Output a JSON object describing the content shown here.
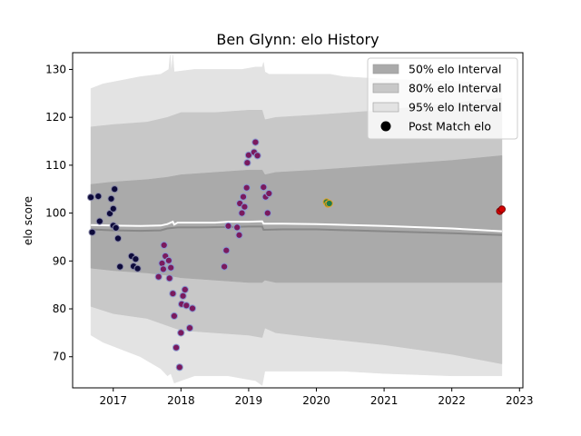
{
  "chart_data": {
    "type": "scatter",
    "title": "Ben Glynn: elo History",
    "xlabel": "",
    "ylabel": "elo score",
    "xlim": [
      2016.4,
      2023.05
    ],
    "ylim": [
      63.5,
      133.5
    ],
    "xticks": [
      {
        "value": 2017,
        "label": "2017"
      },
      {
        "value": 2018,
        "label": "2018"
      },
      {
        "value": 2019,
        "label": "2019"
      },
      {
        "value": 2020,
        "label": "2020"
      },
      {
        "value": 2021,
        "label": "2021"
      },
      {
        "value": 2022,
        "label": "2022"
      },
      {
        "value": 2023,
        "label": "2023"
      }
    ],
    "yticks": [
      {
        "value": 70,
        "label": "70"
      },
      {
        "value": 80,
        "label": "80"
      },
      {
        "value": 90,
        "label": "90"
      },
      {
        "value": 100,
        "label": "100"
      },
      {
        "value": 110,
        "label": "110"
      },
      {
        "value": 120,
        "label": "120"
      },
      {
        "value": 130,
        "label": "130"
      }
    ],
    "grid": false,
    "legend_placement": "top-right",
    "legend": [
      {
        "label": "50% elo Interval",
        "kind": "band",
        "color": "#aaaaaa"
      },
      {
        "label": "80% elo Interval",
        "kind": "band",
        "color": "#c8c8c8"
      },
      {
        "label": "95% elo Interval",
        "kind": "band",
        "color": "#e3e3e3"
      },
      {
        "label": "Post Match elo",
        "kind": "marker",
        "color": "#000000"
      }
    ],
    "bands": [
      {
        "name": "95% elo Interval",
        "color": "#e3e3e3",
        "upper": [
          [
            2016.67,
            126.0
          ],
          [
            2016.85,
            127.0
          ],
          [
            2017.4,
            128.5
          ],
          [
            2017.7,
            129.0
          ],
          [
            2017.82,
            130.0
          ],
          [
            2017.84,
            133.0
          ],
          [
            2017.86,
            129.5
          ],
          [
            2017.88,
            133.0
          ],
          [
            2017.9,
            129.5
          ],
          [
            2018.2,
            130.0
          ],
          [
            2018.5,
            130.0
          ],
          [
            2018.7,
            130.0
          ],
          [
            2018.9,
            130.0
          ],
          [
            2019.1,
            130.5
          ],
          [
            2019.2,
            130.5
          ],
          [
            2019.22,
            131.5
          ],
          [
            2019.24,
            129.5
          ],
          [
            2019.3,
            129.0
          ],
          [
            2019.6,
            129.0
          ],
          [
            2020.0,
            129.0
          ],
          [
            2020.2,
            129.0
          ],
          [
            2020.4,
            128.5
          ],
          [
            2021.0,
            128.0
          ],
          [
            2022.0,
            127.5
          ],
          [
            2022.74,
            127.0
          ]
        ],
        "lower": [
          [
            2016.67,
            74.5
          ],
          [
            2016.85,
            73.0
          ],
          [
            2017.4,
            70.0
          ],
          [
            2017.7,
            67.5
          ],
          [
            2017.8,
            66.0
          ],
          [
            2017.85,
            66.5
          ],
          [
            2017.9,
            64.5
          ],
          [
            2018.2,
            66.0
          ],
          [
            2018.5,
            66.0
          ],
          [
            2018.7,
            66.0
          ],
          [
            2018.9,
            65.5
          ],
          [
            2019.1,
            65.0
          ],
          [
            2019.2,
            64.0
          ],
          [
            2019.24,
            67.0
          ],
          [
            2019.3,
            67.0
          ],
          [
            2019.6,
            67.0
          ],
          [
            2020.0,
            67.0
          ],
          [
            2020.2,
            67.0
          ],
          [
            2020.4,
            67.0
          ],
          [
            2021.0,
            66.5
          ],
          [
            2022.0,
            66.0
          ],
          [
            2022.74,
            66.0
          ]
        ]
      },
      {
        "name": "80% elo Interval",
        "color": "#c8c8c8",
        "upper": [
          [
            2016.67,
            118.0
          ],
          [
            2017.0,
            118.5
          ],
          [
            2017.5,
            119.0
          ],
          [
            2017.8,
            120.0
          ],
          [
            2018.0,
            121.0
          ],
          [
            2018.5,
            121.0
          ],
          [
            2019.0,
            121.5
          ],
          [
            2019.2,
            121.5
          ],
          [
            2019.24,
            119.5
          ],
          [
            2019.4,
            120.0
          ],
          [
            2020.0,
            120.5
          ],
          [
            2021.0,
            121.5
          ],
          [
            2022.0,
            123.0
          ],
          [
            2022.74,
            124.0
          ]
        ],
        "lower": [
          [
            2016.67,
            80.5
          ],
          [
            2017.0,
            79.0
          ],
          [
            2017.5,
            78.0
          ],
          [
            2017.8,
            76.5
          ],
          [
            2018.0,
            75.5
          ],
          [
            2018.5,
            75.0
          ],
          [
            2019.0,
            74.5
          ],
          [
            2019.2,
            74.0
          ],
          [
            2019.24,
            76.0
          ],
          [
            2019.4,
            75.0
          ],
          [
            2020.0,
            74.0
          ],
          [
            2021.0,
            72.5
          ],
          [
            2022.0,
            70.5
          ],
          [
            2022.74,
            68.5
          ]
        ]
      },
      {
        "name": "50% elo Interval",
        "color": "#aaaaaa",
        "upper": [
          [
            2016.67,
            106.0
          ],
          [
            2017.0,
            106.5
          ],
          [
            2017.5,
            107.0
          ],
          [
            2017.8,
            107.5
          ],
          [
            2018.0,
            108.0
          ],
          [
            2018.5,
            108.5
          ],
          [
            2019.0,
            109.0
          ],
          [
            2019.2,
            109.0
          ],
          [
            2019.24,
            108.0
          ],
          [
            2019.4,
            108.5
          ],
          [
            2020.0,
            109.0
          ],
          [
            2021.0,
            110.0
          ],
          [
            2022.0,
            111.0
          ],
          [
            2022.74,
            112.0
          ]
        ],
        "lower": [
          [
            2016.67,
            88.5
          ],
          [
            2017.0,
            88.0
          ],
          [
            2017.5,
            87.5
          ],
          [
            2017.8,
            87.0
          ],
          [
            2018.0,
            86.5
          ],
          [
            2018.5,
            86.0
          ],
          [
            2019.0,
            85.5
          ],
          [
            2019.2,
            85.5
          ],
          [
            2019.24,
            86.0
          ],
          [
            2019.4,
            85.5
          ],
          [
            2020.0,
            85.5
          ],
          [
            2021.0,
            85.5
          ],
          [
            2022.0,
            85.5
          ],
          [
            2022.74,
            85.5
          ]
        ]
      }
    ],
    "lines": [
      {
        "name": "mean",
        "color": "#888888",
        "points": [
          [
            2016.67,
            96.6
          ],
          [
            2017.0,
            96.4
          ],
          [
            2017.4,
            96.3
          ],
          [
            2017.7,
            96.4
          ],
          [
            2017.8,
            96.8
          ],
          [
            2017.95,
            97.0
          ],
          [
            2018.3,
            97.0
          ],
          [
            2018.7,
            97.1
          ],
          [
            2019.0,
            97.2
          ],
          [
            2019.2,
            97.2
          ],
          [
            2019.22,
            96.5
          ],
          [
            2019.5,
            96.6
          ],
          [
            2020.0,
            96.6
          ],
          [
            2021.0,
            96.2
          ],
          [
            2022.0,
            95.8
          ],
          [
            2022.74,
            95.4
          ]
        ]
      },
      {
        "name": "median",
        "color": "#ffffff",
        "points": [
          [
            2016.67,
            97.5
          ],
          [
            2017.0,
            97.4
          ],
          [
            2017.4,
            97.3
          ],
          [
            2017.7,
            97.4
          ],
          [
            2017.8,
            97.7
          ],
          [
            2017.88,
            98.2
          ],
          [
            2017.9,
            97.6
          ],
          [
            2017.95,
            98.0
          ],
          [
            2018.5,
            98.0
          ],
          [
            2018.7,
            98.2
          ],
          [
            2019.0,
            98.2
          ],
          [
            2019.2,
            98.3
          ],
          [
            2019.22,
            97.8
          ],
          [
            2019.5,
            97.8
          ],
          [
            2020.0,
            97.7
          ],
          [
            2021.0,
            97.3
          ],
          [
            2022.0,
            96.8
          ],
          [
            2022.74,
            96.2
          ]
        ]
      }
    ],
    "series": [
      {
        "name": "Post Match elo",
        "color": "#0d0a3a",
        "edge": "#8a8aa8",
        "points": [
          [
            2016.67,
            103.3
          ],
          [
            2016.69,
            96.0
          ],
          [
            2016.78,
            103.5
          ],
          [
            2016.8,
            98.3
          ],
          [
            2016.95,
            99.9
          ],
          [
            2016.97,
            103.0
          ],
          [
            2017.0,
            100.9
          ],
          [
            2017.0,
            97.4
          ],
          [
            2017.02,
            105.0
          ],
          [
            2017.04,
            96.9
          ],
          [
            2017.07,
            94.7
          ],
          [
            2017.1,
            88.8
          ],
          [
            2017.27,
            91.0
          ],
          [
            2017.3,
            88.9
          ],
          [
            2017.33,
            90.4
          ],
          [
            2017.36,
            88.4
          ]
        ]
      },
      {
        "name": "Post Match elo",
        "color": "#7a1a5e",
        "edge": "#8a9ad0",
        "points": [
          [
            2017.67,
            86.7
          ],
          [
            2017.72,
            89.5
          ],
          [
            2017.74,
            88.3
          ],
          [
            2017.75,
            93.3
          ],
          [
            2017.77,
            91.0
          ],
          [
            2017.82,
            90.1
          ],
          [
            2017.83,
            86.4
          ],
          [
            2017.85,
            88.6
          ],
          [
            2017.88,
            83.2
          ],
          [
            2017.9,
            78.5
          ],
          [
            2017.93,
            71.9
          ],
          [
            2017.98,
            67.8
          ],
          [
            2018.0,
            75.0
          ],
          [
            2018.01,
            81.0
          ],
          [
            2018.03,
            82.7
          ],
          [
            2018.06,
            84.0
          ],
          [
            2018.08,
            80.7
          ],
          [
            2018.13,
            76.0
          ],
          [
            2018.17,
            80.1
          ],
          [
            2018.64,
            88.8
          ],
          [
            2018.67,
            92.2
          ],
          [
            2018.7,
            97.3
          ],
          [
            2018.83,
            97.0
          ],
          [
            2018.86,
            95.4
          ],
          [
            2018.87,
            102.0
          ],
          [
            2018.9,
            100.0
          ],
          [
            2018.92,
            103.4
          ],
          [
            2018.94,
            101.3
          ],
          [
            2018.97,
            105.3
          ],
          [
            2018.98,
            110.5
          ],
          [
            2019.0,
            112.1
          ],
          [
            2019.08,
            112.7
          ],
          [
            2019.1,
            114.8
          ],
          [
            2019.13,
            112.0
          ],
          [
            2019.22,
            105.4
          ],
          [
            2019.25,
            103.4
          ],
          [
            2019.28,
            100.0
          ],
          [
            2019.3,
            104.1
          ]
        ]
      },
      {
        "name": "Post Match elo",
        "color": "#1f7a4a",
        "edge": "#e0a020",
        "points": [
          [
            2020.15,
            102.3
          ],
          [
            2020.17,
            101.9
          ],
          [
            2020.19,
            102.0
          ]
        ]
      },
      {
        "name": "Post Match elo",
        "color": "#d40000",
        "edge": "#7a0000",
        "points": [
          [
            2022.71,
            100.4
          ],
          [
            2022.74,
            100.8
          ]
        ]
      }
    ]
  }
}
